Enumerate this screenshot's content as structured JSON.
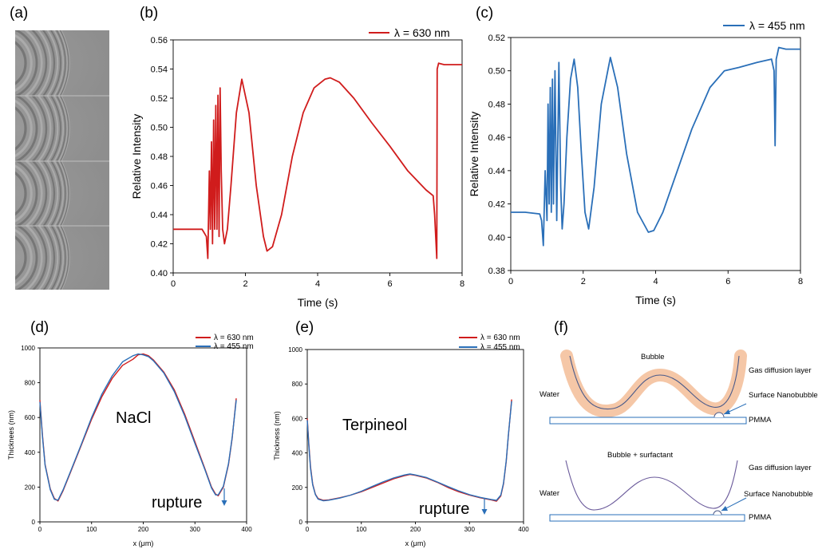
{
  "colors": {
    "red": "#d01c1c",
    "blue": "#2a6fb8",
    "orange": "#f2b48a",
    "gray": "#8a8a8a"
  },
  "panels": {
    "a": {
      "label": "(a)"
    },
    "b": {
      "label": "(b)"
    },
    "c": {
      "label": "(c)"
    },
    "d": {
      "label": "(d)",
      "annotation": "NaCl",
      "rupture": "rupture"
    },
    "e": {
      "label": "(e)",
      "annotation": "Terpineol",
      "rupture": "rupture"
    },
    "f": {
      "label": "(f)",
      "top": {
        "bubble": "Bubble",
        "gas": "Gas diffusion layer",
        "water": "Water",
        "nanobubble": "Surface Nanobubble",
        "pmma": "PMMA"
      },
      "bottom": {
        "bubble": "Bubble + surfactant",
        "gas": "Gas diffusion layer",
        "water": "Water",
        "nanobubble": "Surface Nanobubble",
        "pmma": "PMMA"
      }
    }
  },
  "chart_data": [
    {
      "id": "b",
      "type": "line",
      "xlabel": "Time (s)",
      "ylabel": "Relative Intensity",
      "xlim": [
        0,
        8
      ],
      "ylim": [
        0.4,
        0.56
      ],
      "xticks": [
        0,
        2,
        4,
        6,
        8
      ],
      "yticks": [
        "0.40",
        "0.42",
        "0.44",
        "0.46",
        "0.48",
        "0.50",
        "0.52",
        "0.54",
        "0.56"
      ],
      "legend": "top-right",
      "series": [
        {
          "name": "λ = 630 nm",
          "color": "#d01c1c",
          "x": [
            0,
            0.5,
            0.8,
            0.92,
            0.96,
            1.0,
            1.03,
            1.06,
            1.09,
            1.12,
            1.15,
            1.18,
            1.21,
            1.24,
            1.27,
            1.3,
            1.33,
            1.37,
            1.42,
            1.5,
            1.6,
            1.75,
            1.9,
            2.1,
            2.3,
            2.5,
            2.6,
            2.75,
            3.0,
            3.3,
            3.6,
            3.9,
            4.2,
            4.35,
            4.6,
            5.0,
            5.5,
            6.0,
            6.5,
            7.0,
            7.2,
            7.24,
            7.28,
            7.3,
            7.31,
            7.35,
            7.5,
            7.8,
            8.0
          ],
          "y": [
            0.43,
            0.43,
            0.43,
            0.425,
            0.41,
            0.47,
            0.43,
            0.49,
            0.42,
            0.505,
            0.43,
            0.515,
            0.43,
            0.522,
            0.425,
            0.527,
            0.47,
            0.43,
            0.42,
            0.43,
            0.46,
            0.51,
            0.533,
            0.51,
            0.46,
            0.425,
            0.415,
            0.418,
            0.44,
            0.48,
            0.51,
            0.527,
            0.533,
            0.534,
            0.531,
            0.52,
            0.503,
            0.487,
            0.47,
            0.457,
            0.453,
            0.44,
            0.42,
            0.41,
            0.54,
            0.544,
            0.543,
            0.543,
            0.543
          ]
        }
      ]
    },
    {
      "id": "c",
      "type": "line",
      "xlabel": "Time (s)",
      "ylabel": "Relative Intensity",
      "xlim": [
        0,
        8
      ],
      "ylim": [
        0.38,
        0.52
      ],
      "xticks": [
        0,
        2,
        4,
        6,
        8
      ],
      "yticks": [
        "0.38",
        "0.40",
        "0.42",
        "0.44",
        "0.46",
        "0.48",
        "0.50",
        "0.52"
      ],
      "legend": "top-right",
      "series": [
        {
          "name": "λ = 455 nm",
          "color": "#2a6fb8",
          "x": [
            0,
            0.4,
            0.8,
            0.85,
            0.9,
            0.95,
            1.0,
            1.03,
            1.06,
            1.09,
            1.12,
            1.15,
            1.18,
            1.22,
            1.27,
            1.33,
            1.38,
            1.42,
            1.47,
            1.55,
            1.65,
            1.75,
            1.85,
            1.95,
            2.05,
            2.15,
            2.3,
            2.5,
            2.75,
            2.95,
            3.2,
            3.5,
            3.8,
            3.95,
            4.2,
            4.6,
            5.0,
            5.5,
            5.9,
            6.3,
            6.8,
            7.2,
            7.27,
            7.3,
            7.33,
            7.36,
            7.4,
            7.6,
            8.0
          ],
          "y": [
            0.415,
            0.415,
            0.414,
            0.41,
            0.395,
            0.44,
            0.41,
            0.48,
            0.42,
            0.49,
            0.415,
            0.495,
            0.42,
            0.5,
            0.41,
            0.505,
            0.43,
            0.405,
            0.42,
            0.46,
            0.495,
            0.507,
            0.49,
            0.45,
            0.415,
            0.405,
            0.43,
            0.48,
            0.508,
            0.49,
            0.45,
            0.415,
            0.403,
            0.404,
            0.415,
            0.44,
            0.465,
            0.49,
            0.5,
            0.502,
            0.505,
            0.507,
            0.5,
            0.455,
            0.507,
            0.51,
            0.514,
            0.513,
            0.513
          ]
        }
      ]
    },
    {
      "id": "d",
      "type": "line",
      "xlabel": "x (μm)",
      "ylabel": "Thicknees (nm)",
      "xlim": [
        0,
        400
      ],
      "ylim": [
        0,
        1000
      ],
      "xticks": [
        0,
        100,
        200,
        300,
        400
      ],
      "yticks": [
        0,
        200,
        400,
        600,
        800,
        1000
      ],
      "legend": "top-right",
      "series": [
        {
          "name": "λ = 630 nm",
          "color": "#d01c1c",
          "x": [
            0,
            5,
            10,
            20,
            28,
            35,
            45,
            60,
            80,
            100,
            120,
            140,
            160,
            180,
            190,
            200,
            210,
            220,
            240,
            260,
            280,
            300,
            320,
            332,
            340,
            345,
            355,
            365,
            372,
            380
          ],
          "y": [
            700,
            500,
            330,
            190,
            135,
            120,
            180,
            290,
            440,
            590,
            720,
            825,
            900,
            935,
            960,
            965,
            955,
            930,
            860,
            760,
            620,
            460,
            300,
            200,
            160,
            150,
            200,
            330,
            480,
            710
          ]
        },
        {
          "name": "λ = 455 nm",
          "color": "#2a6fb8",
          "x": [
            0,
            5,
            10,
            20,
            28,
            35,
            45,
            60,
            80,
            100,
            120,
            140,
            160,
            180,
            190,
            200,
            210,
            220,
            240,
            260,
            280,
            300,
            320,
            332,
            340,
            345,
            355,
            365,
            372,
            380
          ],
          "y": [
            690,
            490,
            325,
            185,
            130,
            125,
            185,
            295,
            445,
            600,
            735,
            840,
            920,
            955,
            965,
            960,
            950,
            925,
            855,
            750,
            610,
            450,
            295,
            195,
            155,
            155,
            205,
            335,
            485,
            700
          ]
        }
      ]
    },
    {
      "id": "e",
      "type": "line",
      "xlabel": "x (μm)",
      "ylabel": "Thickness (nm)",
      "xlim": [
        0,
        400
      ],
      "ylim": [
        0,
        1000
      ],
      "xticks": [
        0,
        100,
        200,
        300,
        400
      ],
      "yticks": [
        0,
        200,
        400,
        600,
        800,
        1000
      ],
      "legend": "top-right",
      "series": [
        {
          "name": "λ = 630 nm",
          "color": "#d01c1c",
          "x": [
            0,
            3,
            6,
            10,
            15,
            20,
            30,
            40,
            60,
            80,
            100,
            120,
            140,
            160,
            180,
            190,
            200,
            220,
            240,
            260,
            280,
            300,
            320,
            340,
            350,
            358,
            363,
            368,
            372,
            378
          ],
          "y": [
            600,
            450,
            320,
            220,
            160,
            135,
            125,
            128,
            140,
            155,
            175,
            200,
            225,
            250,
            268,
            275,
            270,
            255,
            230,
            200,
            175,
            155,
            140,
            128,
            120,
            150,
            220,
            350,
            500,
            710
          ]
        },
        {
          "name": "λ = 455 nm",
          "color": "#2a6fb8",
          "x": [
            0,
            3,
            6,
            10,
            15,
            20,
            30,
            40,
            60,
            80,
            100,
            120,
            140,
            160,
            180,
            190,
            200,
            220,
            240,
            260,
            280,
            300,
            320,
            340,
            350,
            358,
            363,
            368,
            372,
            378
          ],
          "y": [
            590,
            440,
            310,
            215,
            158,
            132,
            122,
            126,
            138,
            155,
            178,
            205,
            232,
            255,
            272,
            278,
            272,
            258,
            232,
            205,
            180,
            158,
            142,
            130,
            125,
            155,
            225,
            355,
            505,
            700
          ]
        }
      ]
    }
  ]
}
